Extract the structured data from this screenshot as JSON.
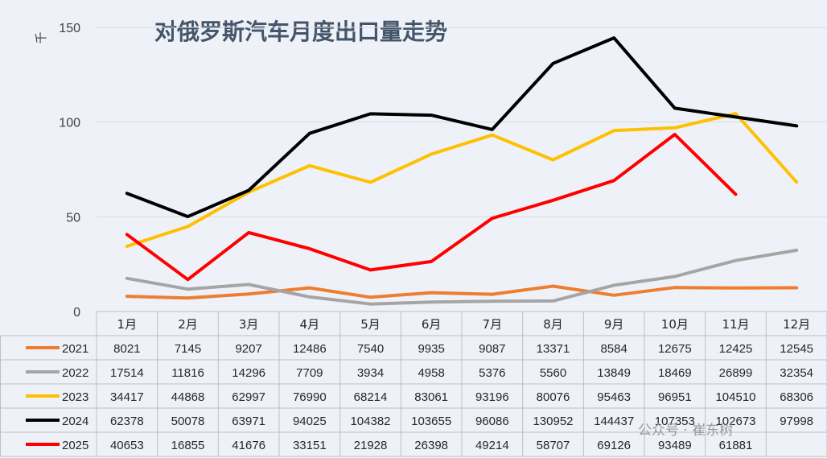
{
  "chart_data": {
    "type": "line",
    "title": "对俄罗斯汽车月度出口量走势",
    "ylabel": "千",
    "ylim": [
      0,
      150
    ],
    "yticks": [
      0,
      50,
      100,
      150
    ],
    "categories": [
      "1月",
      "2月",
      "3月",
      "4月",
      "5月",
      "6月",
      "7月",
      "8月",
      "9月",
      "10月",
      "11月",
      "12月"
    ],
    "series": [
      {
        "name": "2021",
        "color": "#ed7d31",
        "values": [
          8021,
          7145,
          9207,
          12486,
          7540,
          9935,
          9087,
          13371,
          8584,
          12675,
          12425,
          12545
        ]
      },
      {
        "name": "2022",
        "color": "#a5a5a5",
        "values": [
          17514,
          11816,
          14296,
          7709,
          3934,
          4958,
          5376,
          5560,
          13849,
          18469,
          26899,
          32354
        ]
      },
      {
        "name": "2023",
        "color": "#ffc000",
        "values": [
          34417,
          44868,
          62997,
          76990,
          68214,
          83061,
          93196,
          80076,
          95463,
          96951,
          104510,
          68306
        ]
      },
      {
        "name": "2024",
        "color": "#000000",
        "values": [
          62378,
          50078,
          63971,
          94025,
          104382,
          103655,
          96086,
          130952,
          144437,
          107353,
          102673,
          97998
        ]
      },
      {
        "name": "2025",
        "color": "#ff0000",
        "values": [
          40653,
          16855,
          41676,
          33151,
          21928,
          26398,
          49214,
          58707,
          69126,
          93489,
          61881,
          null
        ]
      }
    ],
    "data_table": true
  },
  "watermark": "公众号 · 崔东树"
}
